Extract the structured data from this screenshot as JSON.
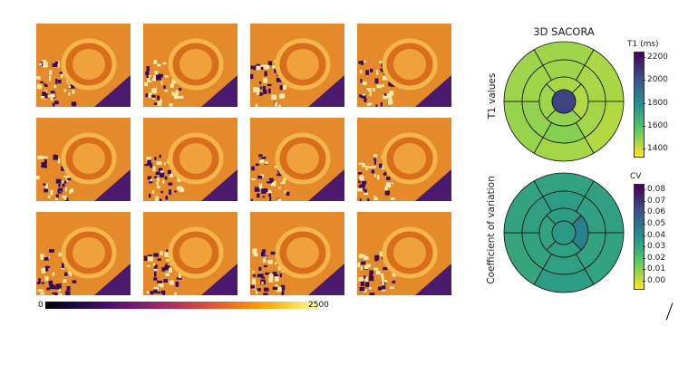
{
  "colorbar_main": {
    "min_label": "0",
    "max_label": "2500",
    "colormap": "inferno"
  },
  "sacora": {
    "title": "3D SACORA",
    "t1": {
      "row_label": "T1 values",
      "cbar_title": "T1 (ms)",
      "ticks": [
        "2200",
        "2000",
        "1800",
        "1600",
        "1400"
      ],
      "range": [
        1350,
        2350
      ],
      "segments": {
        "basal": [
          1500,
          1480,
          1470,
          1490,
          1510,
          1500
        ],
        "mid": [
          1500,
          1480,
          1490,
          1540,
          1520,
          1500
        ],
        "apical": [
          1480,
          1470,
          1520,
          1500
        ],
        "apex": 2150
      }
    },
    "cv": {
      "row_label": "Coefficient of variation",
      "cbar_title": "CV",
      "ticks": [
        "0.08",
        "0.07",
        "0.06",
        "0.05",
        "0.04",
        "0.03",
        "0.02",
        "0.01",
        "0.00"
      ],
      "range": [
        0,
        0.08
      ],
      "segments": {
        "basal": [
          0.034,
          0.035,
          0.034,
          0.036,
          0.033,
          0.034
        ],
        "mid": [
          0.036,
          0.035,
          0.034,
          0.035,
          0.034,
          0.035
        ],
        "apical": [
          0.036,
          0.045,
          0.035,
          0.034
        ],
        "apex": 0.037
      }
    }
  }
}
